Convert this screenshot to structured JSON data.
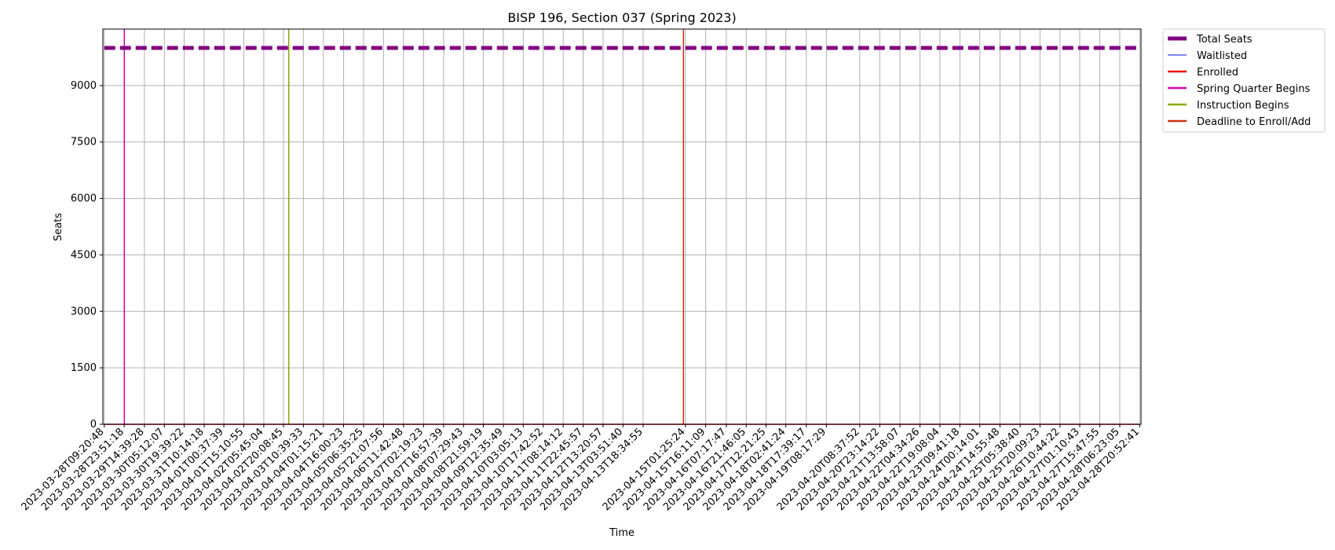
{
  "chart_data": {
    "type": "line",
    "title": "BISP 196, Section 037 (Spring 2023)",
    "xlabel": "Time",
    "ylabel": "Seats",
    "ylim": [
      0,
      10500
    ],
    "yticks": [
      0,
      1500,
      3000,
      4500,
      6000,
      7500,
      9000
    ],
    "grid": true,
    "legend_position": "outside top-right",
    "x": [
      "2023-03-28T09:20:48",
      "2023-03-28T23:51:18",
      "2023-03-29T14:39:28",
      "2023-03-30T05:12:07",
      "2023-03-30T19:39:22",
      "2023-03-31T10:14:18",
      "2023-04-01T00:37:39",
      "2023-04-01T15:10:55",
      "2023-04-02T05:45:04",
      "2023-04-02T20:08:45",
      "2023-04-03T10:39:33",
      "2023-04-04T01:15:21",
      "2023-04-04T16:00:23",
      "2023-04-05T06:35:25",
      "2023-04-05T21:07:56",
      "2023-04-06T11:42:48",
      "2023-04-07T02:19:23",
      "2023-04-07T16:57:39",
      "2023-04-08T07:29:43",
      "2023-04-08T21:59:19",
      "2023-04-09T12:35:49",
      "2023-04-10T03:05:13",
      "2023-04-10T17:42:52",
      "2023-04-11T08:14:12",
      "2023-04-11T22:45:57",
      "2023-04-12T13:20:57",
      "2023-04-13T03:51:40",
      "2023-04-13T18:34:55",
      "2023-04-15T01:25:24",
      "2023-04-15T16:11:09",
      "2023-04-16T07:17:47",
      "2023-04-16T21:46:05",
      "2023-04-17T12:21:25",
      "2023-04-18T02:41:24",
      "2023-04-18T17:39:17",
      "2023-04-19T08:17:29",
      "2023-04-20T08:37:52",
      "2023-04-20T23:14:22",
      "2023-04-21T13:58:07",
      "2023-04-22T04:34:26",
      "2023-04-22T19:08:04",
      "2023-04-23T09:41:18",
      "2023-04-24T00:14:01",
      "2023-04-24T14:55:48",
      "2023-04-25T05:38:40",
      "2023-04-25T20:09:23",
      "2023-04-26T10:44:22",
      "2023-04-27T01:10:43",
      "2023-04-27T15:47:55",
      "2023-04-28T06:23:05",
      "2023-04-28T20:52:41"
    ],
    "series": [
      {
        "name": "Total Seats",
        "color": "#800080",
        "style": "dashed",
        "constant": 10000
      },
      {
        "name": "Waitlisted",
        "color": "#3344dd",
        "style": "solid",
        "constant": 0
      },
      {
        "name": "Enrolled",
        "color": "#ee1111",
        "style": "solid",
        "constant": 0
      }
    ],
    "events": [
      {
        "name": "Spring Quarter Begins",
        "color": "#d400b0",
        "at": "2023-03-29T00:00:00"
      },
      {
        "name": "Instruction Begins",
        "color": "#88aa00",
        "at": "2023-04-03T00:00:00"
      },
      {
        "name": "Deadline to Enroll/Add",
        "color": "#cc3311",
        "at": "2023-04-14T23:59:00"
      }
    ]
  }
}
